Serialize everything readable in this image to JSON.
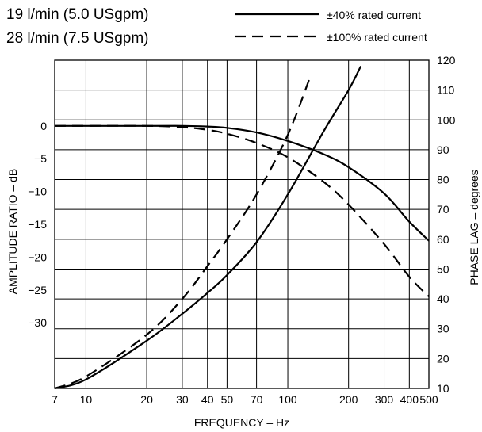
{
  "header": {
    "flow_line_1": "19 l/min (5.0 USgpm)",
    "flow_line_2": "28 l/min (7.5 USgpm)"
  },
  "legend": [
    {
      "label": "±40% rated current",
      "style": "solid"
    },
    {
      "label": "±100% rated current",
      "style": "dashed"
    }
  ],
  "chart_data": {
    "type": "line",
    "xlabel": "FREQUENCY – Hz",
    "ylabel_left": "AMPLITUDE RATIO – dB",
    "ylabel_right": "PHASE LAG – degrees",
    "x_scale": "log",
    "xlim": [
      7,
      500
    ],
    "x_ticks": [
      7,
      10,
      20,
      30,
      40,
      50,
      70,
      100,
      200,
      300,
      400,
      500
    ],
    "x_tick_labels": [
      "7",
      "10",
      "20",
      "30",
      "40",
      "50",
      "70",
      "100",
      "200",
      "300",
      "400",
      "500"
    ],
    "y_left_lim": [
      -40,
      10
    ],
    "y_left_ticks": [
      0,
      -5,
      -10,
      -15,
      -20,
      -25,
      -30
    ],
    "y_left_tick_labels": [
      "0",
      "−5",
      "−10",
      "−15",
      "−20",
      "−25",
      "−30"
    ],
    "y_right_lim": [
      10,
      120
    ],
    "y_right_ticks": [
      10,
      20,
      30,
      40,
      50,
      60,
      70,
      80,
      90,
      100,
      110,
      120
    ],
    "y_right_tick_labels": [
      "10",
      "20",
      "30",
      "40",
      "50",
      "60",
      "70",
      "80",
      "90",
      "100",
      "110",
      "120"
    ],
    "grid": true,
    "series": [
      {
        "name": "±40% rated current",
        "quantity": "amplitude",
        "axis": "left",
        "style": "solid",
        "x": [
          7,
          20,
          30,
          40,
          50,
          70,
          100,
          150,
          200,
          300,
          400,
          500
        ],
        "y": [
          0,
          0,
          0,
          -0.1,
          -0.3,
          -1.0,
          -2.3,
          -4.3,
          -6.3,
          -10.3,
          -14.6,
          -17.5
        ]
      },
      {
        "name": "±100% rated current",
        "quantity": "amplitude",
        "axis": "left",
        "style": "dashed",
        "x": [
          7,
          20,
          30,
          40,
          50,
          70,
          100,
          150,
          200,
          300,
          400,
          500
        ],
        "y": [
          0,
          0,
          -0.2,
          -0.6,
          -1.2,
          -2.6,
          -4.8,
          -8.5,
          -12.0,
          -18.0,
          -23.0,
          -26.0
        ]
      },
      {
        "name": "±40% rated current",
        "quantity": "phase",
        "axis": "right",
        "style": "solid",
        "x": [
          7,
          10,
          20,
          30,
          40,
          50,
          70,
          100,
          150,
          200,
          230
        ],
        "y": [
          10,
          13,
          26,
          35,
          42,
          48,
          59,
          75,
          96,
          110,
          118
        ]
      },
      {
        "name": "±100% rated current",
        "quantity": "phase",
        "axis": "right",
        "style": "dashed",
        "x": [
          7,
          10,
          20,
          30,
          40,
          50,
          70,
          100,
          130
        ],
        "y": [
          10,
          14,
          28,
          40,
          51,
          60,
          75,
          95,
          115
        ]
      }
    ]
  }
}
